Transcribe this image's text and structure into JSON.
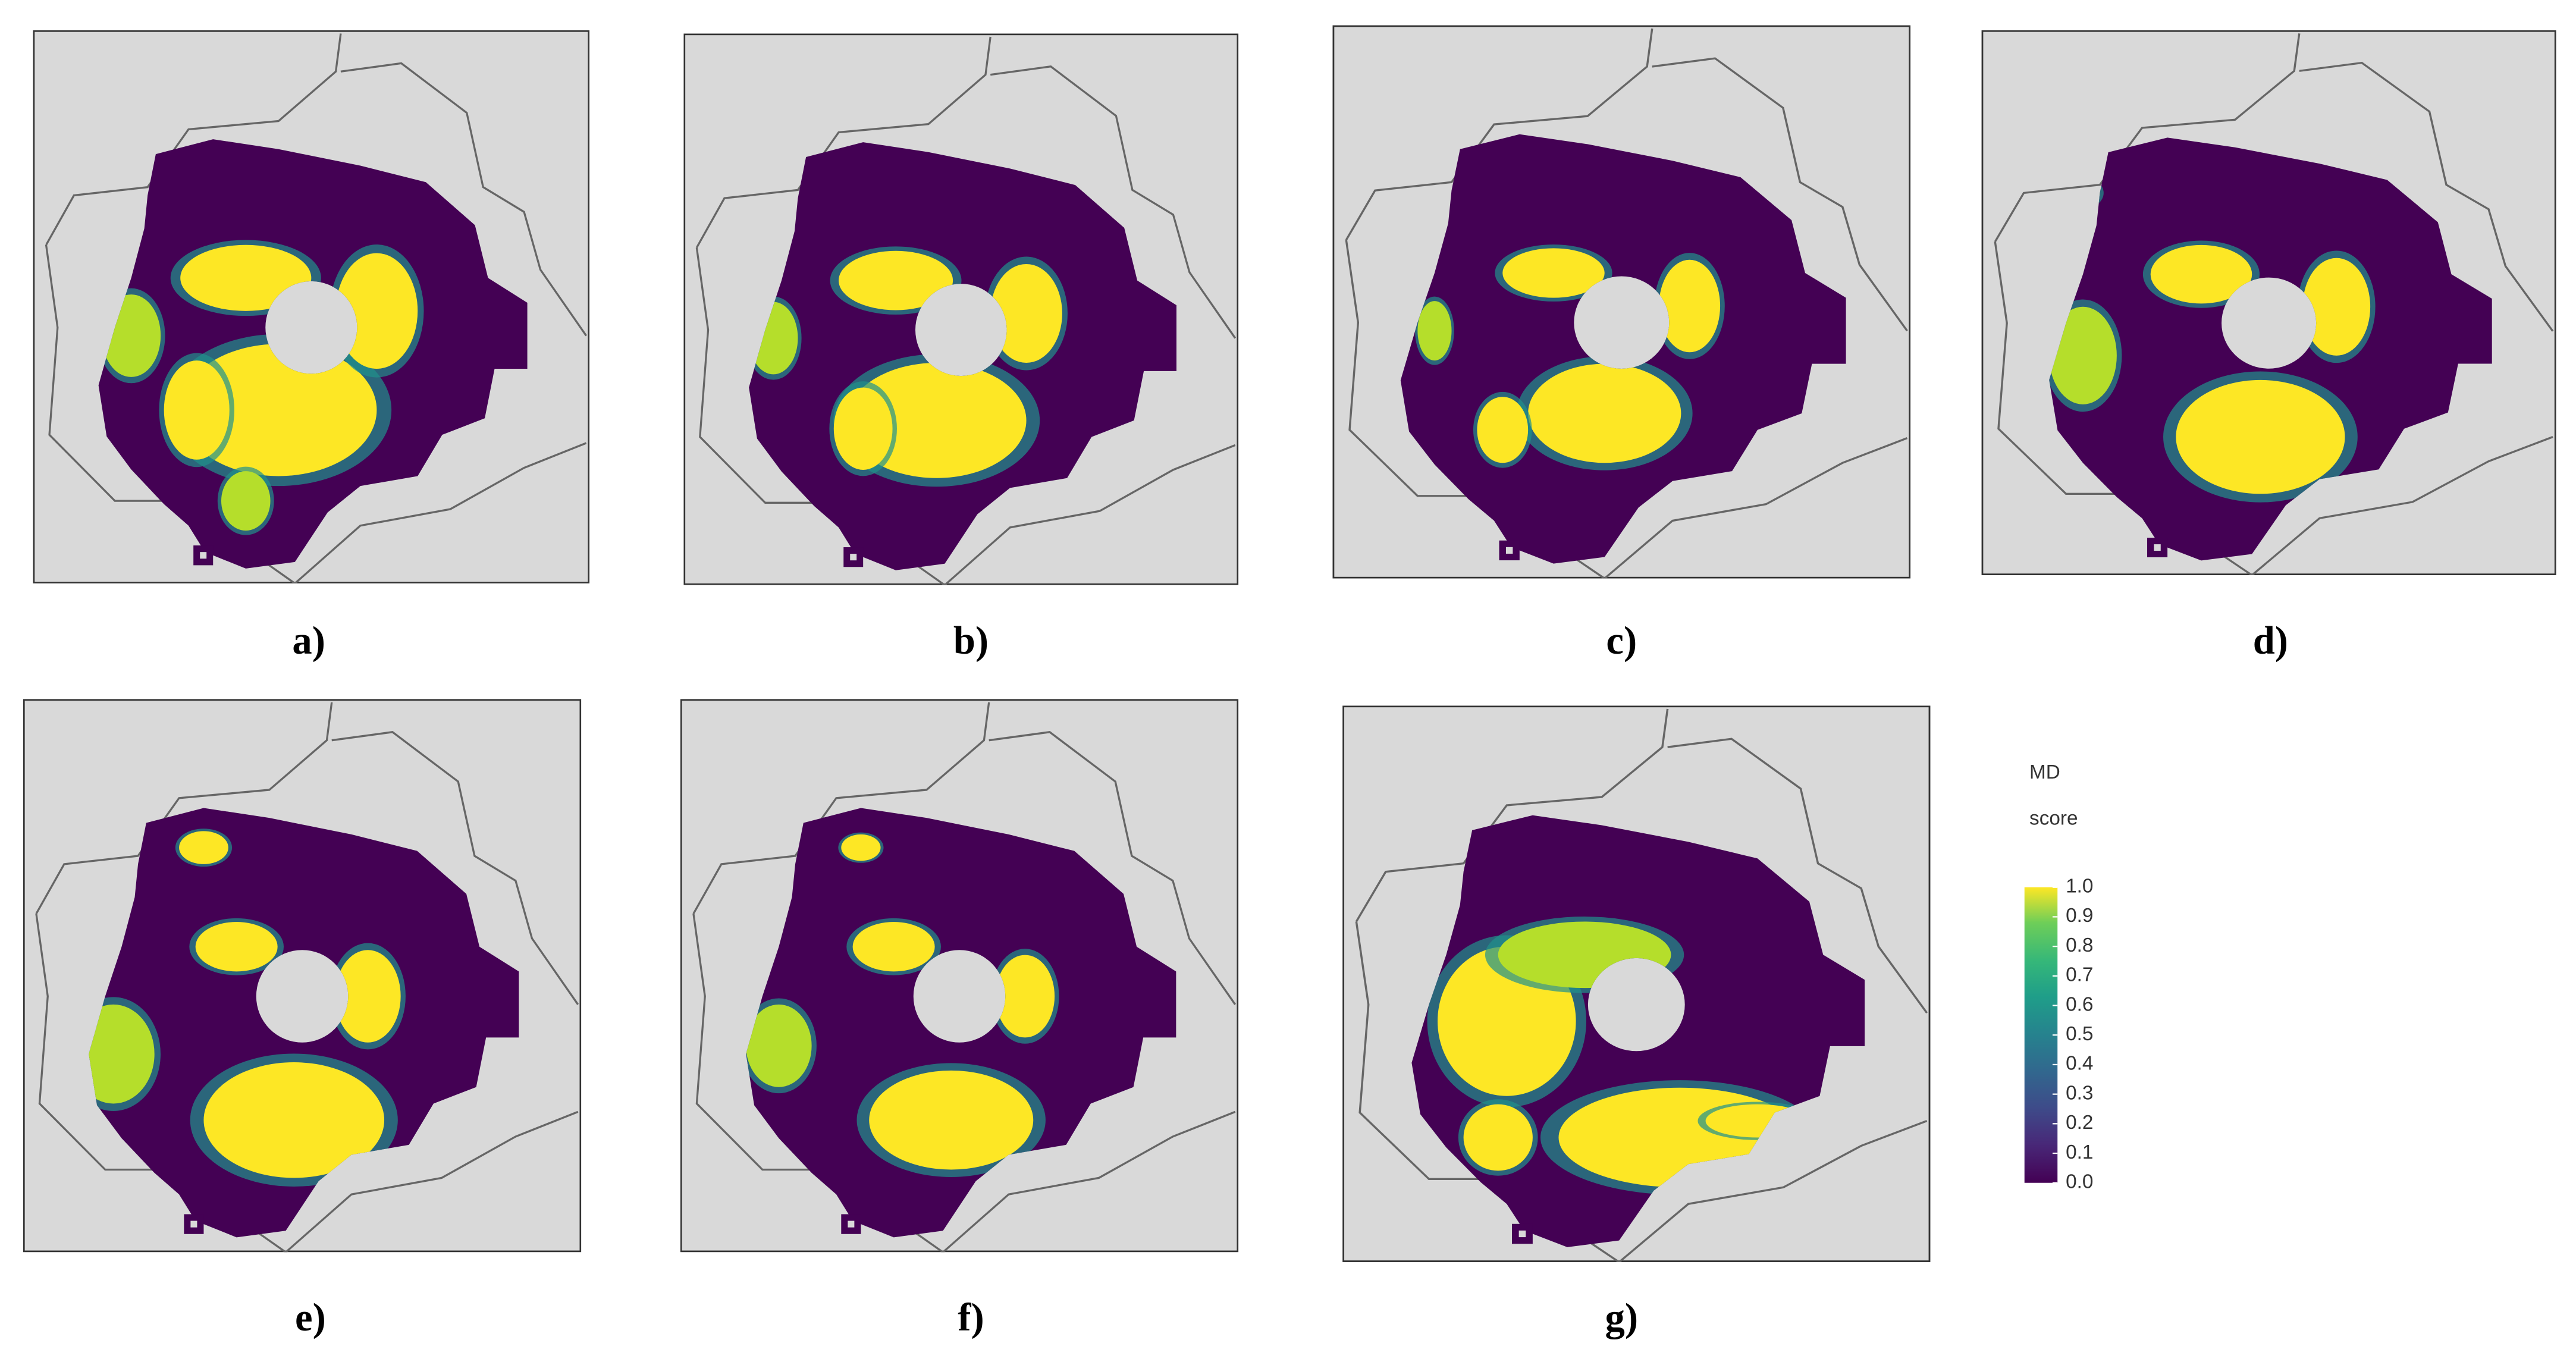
{
  "panels": [
    {
      "label": "a)"
    },
    {
      "label": "b)"
    },
    {
      "label": "c)"
    },
    {
      "label": "d)"
    },
    {
      "label": "e)"
    },
    {
      "label": "f)"
    },
    {
      "label": "g)"
    }
  ],
  "colorbar": {
    "title": [
      "MD",
      "score"
    ],
    "range": [
      0,
      1
    ],
    "ticks": [
      {
        "value": 0,
        "label": "0.0"
      },
      0.1,
      0.2,
      0.3,
      0.4,
      0.5,
      0.6,
      0.7,
      0.8,
      0.9,
      {
        "value": 1,
        "label": "1.0"
      }
    ]
  }
}
